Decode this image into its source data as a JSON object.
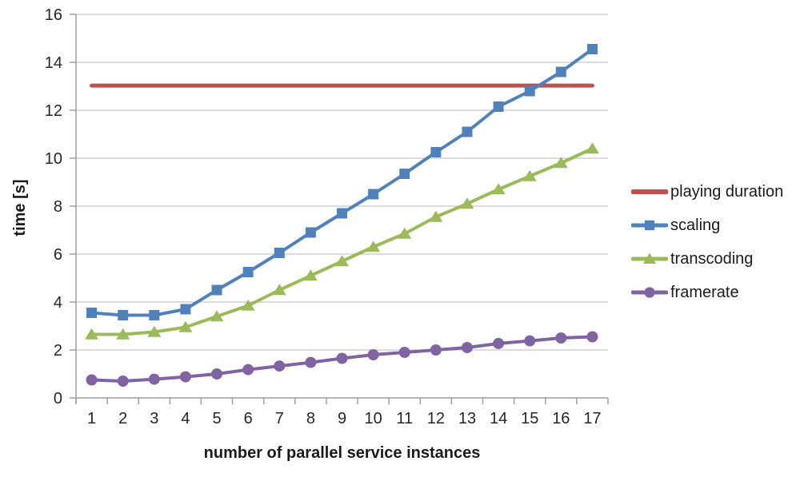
{
  "chart_data": {
    "type": "line",
    "title": "",
    "xlabel": "number of parallel service instances",
    "ylabel": "time [s]",
    "categories": [
      "1",
      "2",
      "3",
      "4",
      "5",
      "6",
      "7",
      "8",
      "9",
      "10",
      "11",
      "12",
      "13",
      "14",
      "15",
      "16",
      "17"
    ],
    "ylim": [
      0,
      16
    ],
    "ytick_step": 2,
    "yticks": [
      0,
      2,
      4,
      6,
      8,
      10,
      12,
      14,
      16
    ],
    "grid": true,
    "legend_position": "right",
    "series": [
      {
        "name": "playing duration",
        "color": "#C0504D",
        "marker": "none",
        "line_width": 5,
        "values": [
          13.03,
          13.03,
          13.03,
          13.03,
          13.03,
          13.03,
          13.03,
          13.03,
          13.03,
          13.03,
          13.03,
          13.03,
          13.03,
          13.03,
          13.03,
          13.03,
          13.03
        ]
      },
      {
        "name": "scaling",
        "color": "#4F81BD",
        "marker": "square",
        "line_width": 4,
        "values": [
          3.55,
          3.45,
          3.45,
          3.7,
          4.5,
          5.25,
          6.05,
          6.9,
          7.7,
          8.5,
          9.35,
          10.25,
          11.1,
          12.15,
          12.8,
          13.6,
          14.55
        ]
      },
      {
        "name": "transcoding",
        "color": "#9BBB59",
        "marker": "triangle",
        "line_width": 4,
        "values": [
          2.65,
          2.65,
          2.75,
          2.95,
          3.4,
          3.85,
          4.5,
          5.1,
          5.7,
          6.3,
          6.85,
          7.55,
          8.1,
          8.7,
          9.25,
          9.8,
          10.4
        ]
      },
      {
        "name": "framerate",
        "color": "#8064A2",
        "marker": "circle",
        "line_width": 4,
        "values": [
          0.75,
          0.7,
          0.78,
          0.88,
          1.0,
          1.18,
          1.33,
          1.48,
          1.65,
          1.8,
          1.9,
          2.0,
          2.1,
          2.27,
          2.38,
          2.5,
          2.55
        ]
      }
    ]
  },
  "styles": {
    "grid_color": "#C6C6C6",
    "axis_color": "#9E9E9E",
    "text_color": "#262626",
    "background": "#FFFFFF"
  }
}
